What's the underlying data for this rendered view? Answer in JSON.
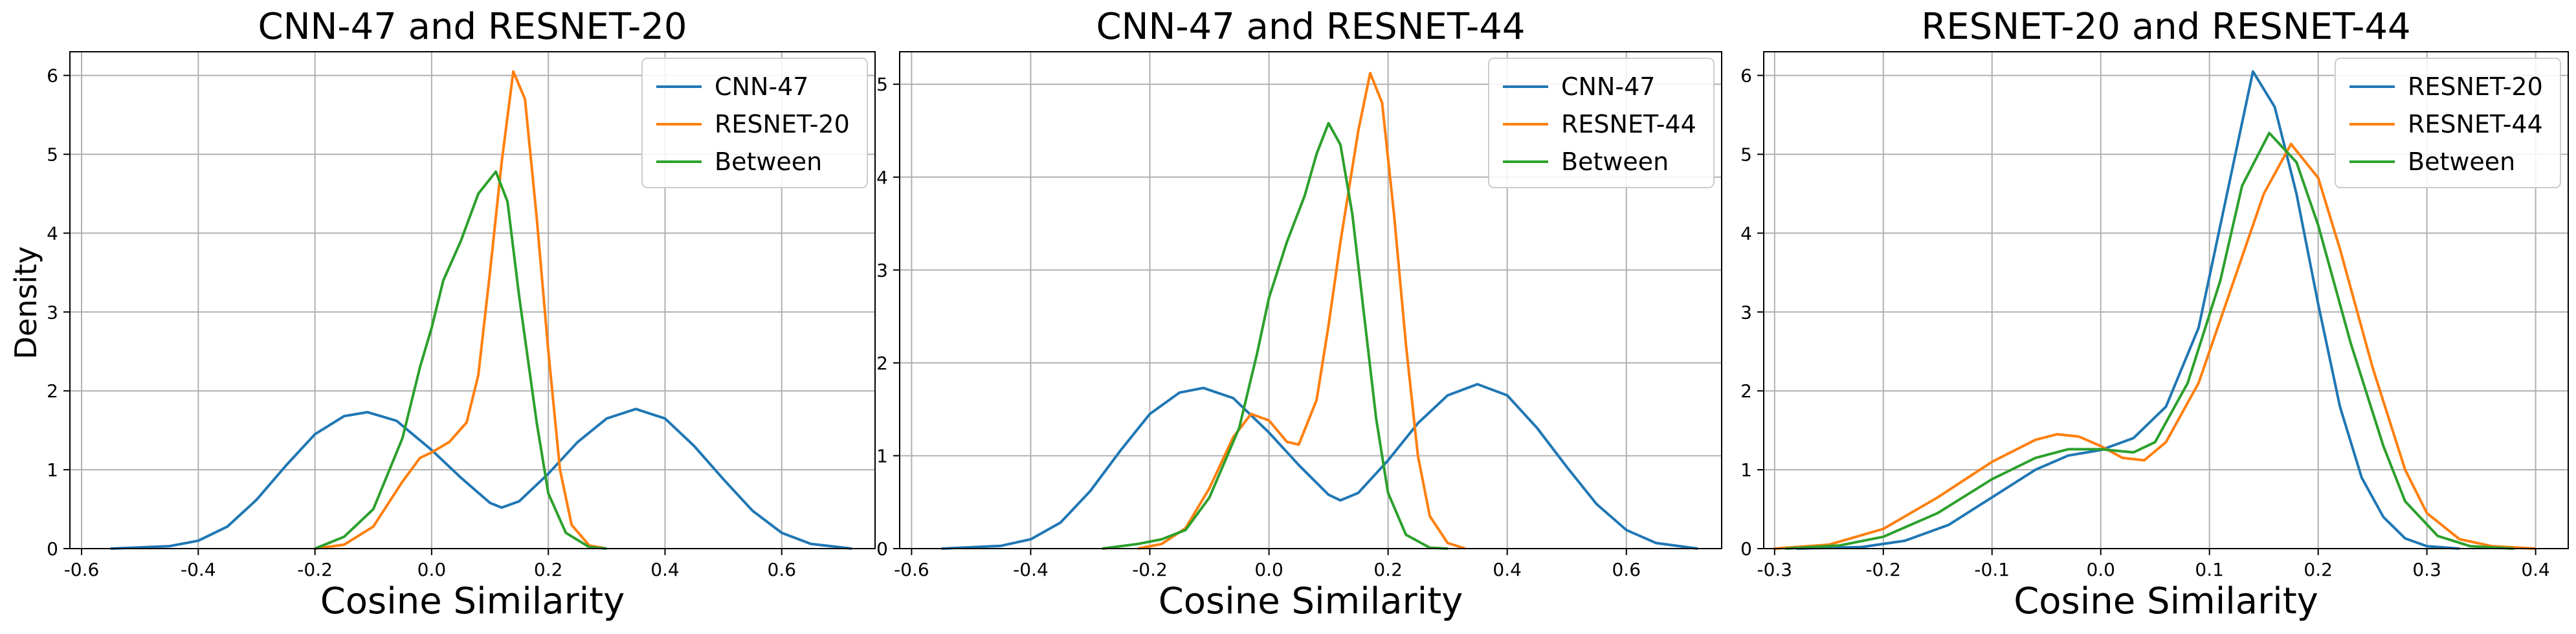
{
  "figure": {
    "ylabel": "Density",
    "xlabel": "Cosine Similarity"
  },
  "chart_data": [
    {
      "type": "line",
      "title": "CNN-47 and RESNET-20",
      "xlabel": "Cosine Similarity",
      "ylabel": "Density",
      "xlim": [
        -0.62,
        0.76
      ],
      "ylim": [
        0,
        6.3
      ],
      "xticks": [
        -0.6,
        -0.4,
        -0.2,
        0.0,
        0.2,
        0.4,
        0.6
      ],
      "xtick_labels": [
        "-0.6",
        "-0.4",
        "-0.2",
        "0.0",
        "0.2",
        "0.4",
        "0.6"
      ],
      "yticks": [
        0,
        1,
        2,
        3,
        4,
        5,
        6
      ],
      "grid": true,
      "legend_position": "top-right",
      "series": [
        {
          "name": "CNN-47",
          "color": "#1f77b4",
          "points": [
            [
              -0.55,
              0
            ],
            [
              -0.45,
              0.03
            ],
            [
              -0.4,
              0.1
            ],
            [
              -0.35,
              0.28
            ],
            [
              -0.3,
              0.62
            ],
            [
              -0.25,
              1.05
            ],
            [
              -0.2,
              1.45
            ],
            [
              -0.15,
              1.68
            ],
            [
              -0.11,
              1.73
            ],
            [
              -0.06,
              1.62
            ],
            [
              0.0,
              1.25
            ],
            [
              0.05,
              0.9
            ],
            [
              0.1,
              0.58
            ],
            [
              0.12,
              0.52
            ],
            [
              0.15,
              0.6
            ],
            [
              0.2,
              0.95
            ],
            [
              0.25,
              1.35
            ],
            [
              0.3,
              1.65
            ],
            [
              0.35,
              1.77
            ],
            [
              0.4,
              1.65
            ],
            [
              0.45,
              1.3
            ],
            [
              0.5,
              0.88
            ],
            [
              0.55,
              0.48
            ],
            [
              0.6,
              0.2
            ],
            [
              0.65,
              0.06
            ],
            [
              0.72,
              0.0
            ]
          ]
        },
        {
          "name": "RESNET-20",
          "color": "#ff7f0e",
          "points": [
            [
              -0.2,
              0
            ],
            [
              -0.15,
              0.05
            ],
            [
              -0.1,
              0.28
            ],
            [
              -0.05,
              0.85
            ],
            [
              -0.02,
              1.15
            ],
            [
              0.0,
              1.22
            ],
            [
              0.03,
              1.35
            ],
            [
              0.06,
              1.6
            ],
            [
              0.08,
              2.2
            ],
            [
              0.1,
              3.5
            ],
            [
              0.12,
              4.9
            ],
            [
              0.14,
              6.05
            ],
            [
              0.16,
              5.7
            ],
            [
              0.18,
              4.2
            ],
            [
              0.2,
              2.5
            ],
            [
              0.22,
              1.0
            ],
            [
              0.24,
              0.3
            ],
            [
              0.27,
              0.04
            ],
            [
              0.3,
              0.0
            ]
          ]
        },
        {
          "name": "Between",
          "color": "#2ca02c",
          "points": [
            [
              -0.2,
              0
            ],
            [
              -0.15,
              0.15
            ],
            [
              -0.1,
              0.5
            ],
            [
              -0.05,
              1.4
            ],
            [
              -0.02,
              2.3
            ],
            [
              0.0,
              2.8
            ],
            [
              0.02,
              3.4
            ],
            [
              0.05,
              3.9
            ],
            [
              0.08,
              4.5
            ],
            [
              0.11,
              4.78
            ],
            [
              0.13,
              4.4
            ],
            [
              0.15,
              3.2
            ],
            [
              0.18,
              1.6
            ],
            [
              0.2,
              0.7
            ],
            [
              0.23,
              0.2
            ],
            [
              0.27,
              0.02
            ],
            [
              0.3,
              0.0
            ]
          ]
        }
      ]
    },
    {
      "type": "line",
      "title": "CNN-47 and RESNET-44",
      "xlabel": "Cosine Similarity",
      "ylabel": "",
      "xlim": [
        -0.62,
        0.76
      ],
      "ylim": [
        0,
        5.35
      ],
      "xticks": [
        -0.6,
        -0.4,
        -0.2,
        0.0,
        0.2,
        0.4,
        0.6
      ],
      "xtick_labels": [
        "-0.6",
        "-0.4",
        "-0.2",
        "0.0",
        "0.2",
        "0.4",
        "0.6"
      ],
      "yticks": [
        0,
        1,
        2,
        3,
        4,
        5
      ],
      "grid": true,
      "legend_position": "top-right",
      "series": [
        {
          "name": "CNN-47",
          "color": "#1f77b4",
          "points": [
            [
              -0.55,
              0
            ],
            [
              -0.45,
              0.03
            ],
            [
              -0.4,
              0.1
            ],
            [
              -0.35,
              0.28
            ],
            [
              -0.3,
              0.62
            ],
            [
              -0.25,
              1.05
            ],
            [
              -0.2,
              1.45
            ],
            [
              -0.15,
              1.68
            ],
            [
              -0.11,
              1.73
            ],
            [
              -0.06,
              1.62
            ],
            [
              0.0,
              1.25
            ],
            [
              0.05,
              0.9
            ],
            [
              0.1,
              0.58
            ],
            [
              0.12,
              0.52
            ],
            [
              0.15,
              0.6
            ],
            [
              0.2,
              0.95
            ],
            [
              0.25,
              1.35
            ],
            [
              0.3,
              1.65
            ],
            [
              0.35,
              1.77
            ],
            [
              0.4,
              1.65
            ],
            [
              0.45,
              1.3
            ],
            [
              0.5,
              0.88
            ],
            [
              0.55,
              0.48
            ],
            [
              0.6,
              0.2
            ],
            [
              0.65,
              0.06
            ],
            [
              0.72,
              0.0
            ]
          ]
        },
        {
          "name": "RESNET-44",
          "color": "#ff7f0e",
          "points": [
            [
              -0.22,
              0
            ],
            [
              -0.18,
              0.05
            ],
            [
              -0.14,
              0.22
            ],
            [
              -0.1,
              0.65
            ],
            [
              -0.06,
              1.2
            ],
            [
              -0.03,
              1.45
            ],
            [
              0.0,
              1.38
            ],
            [
              0.03,
              1.15
            ],
            [
              0.05,
              1.12
            ],
            [
              0.08,
              1.6
            ],
            [
              0.1,
              2.4
            ],
            [
              0.12,
              3.3
            ],
            [
              0.15,
              4.5
            ],
            [
              0.17,
              5.12
            ],
            [
              0.19,
              4.8
            ],
            [
              0.21,
              3.6
            ],
            [
              0.23,
              2.2
            ],
            [
              0.25,
              1.0
            ],
            [
              0.27,
              0.35
            ],
            [
              0.3,
              0.06
            ],
            [
              0.33,
              0.0
            ]
          ]
        },
        {
          "name": "Between",
          "color": "#2ca02c",
          "points": [
            [
              -0.28,
              0
            ],
            [
              -0.22,
              0.05
            ],
            [
              -0.18,
              0.1
            ],
            [
              -0.14,
              0.2
            ],
            [
              -0.1,
              0.55
            ],
            [
              -0.05,
              1.3
            ],
            [
              -0.02,
              2.1
            ],
            [
              0.0,
              2.7
            ],
            [
              0.03,
              3.3
            ],
            [
              0.06,
              3.8
            ],
            [
              0.08,
              4.25
            ],
            [
              0.1,
              4.58
            ],
            [
              0.12,
              4.35
            ],
            [
              0.14,
              3.6
            ],
            [
              0.16,
              2.5
            ],
            [
              0.18,
              1.4
            ],
            [
              0.2,
              0.6
            ],
            [
              0.23,
              0.15
            ],
            [
              0.27,
              0.01
            ],
            [
              0.3,
              0.0
            ]
          ]
        }
      ]
    },
    {
      "type": "line",
      "title": "RESNET-20 and RESNET-44",
      "xlabel": "Cosine Similarity",
      "ylabel": "",
      "xlim": [
        -0.31,
        0.43
      ],
      "ylim": [
        0,
        6.3
      ],
      "xticks": [
        -0.3,
        -0.2,
        -0.1,
        0.0,
        0.1,
        0.2,
        0.3,
        0.4
      ],
      "xtick_labels": [
        "-0.3",
        "-0.2",
        "-0.1",
        "0.0",
        "0.1",
        "0.2",
        "0.3",
        "0.4"
      ],
      "yticks": [
        0,
        1,
        2,
        3,
        4,
        5,
        6
      ],
      "grid": true,
      "legend_position": "top-right",
      "series": [
        {
          "name": "RESNET-20",
          "color": "#1f77b4",
          "points": [
            [
              -0.28,
              0
            ],
            [
              -0.22,
              0.02
            ],
            [
              -0.18,
              0.1
            ],
            [
              -0.14,
              0.3
            ],
            [
              -0.1,
              0.65
            ],
            [
              -0.06,
              1.0
            ],
            [
              -0.03,
              1.18
            ],
            [
              0.0,
              1.25
            ],
            [
              0.03,
              1.4
            ],
            [
              0.06,
              1.8
            ],
            [
              0.09,
              2.8
            ],
            [
              0.11,
              4.1
            ],
            [
              0.13,
              5.4
            ],
            [
              0.14,
              6.05
            ],
            [
              0.16,
              5.6
            ],
            [
              0.18,
              4.5
            ],
            [
              0.2,
              3.1
            ],
            [
              0.22,
              1.8
            ],
            [
              0.24,
              0.9
            ],
            [
              0.26,
              0.4
            ],
            [
              0.28,
              0.13
            ],
            [
              0.3,
              0.03
            ],
            [
              0.33,
              0.0
            ]
          ]
        },
        {
          "name": "RESNET-44",
          "color": "#ff7f0e",
          "points": [
            [
              -0.3,
              0
            ],
            [
              -0.25,
              0.05
            ],
            [
              -0.2,
              0.25
            ],
            [
              -0.15,
              0.65
            ],
            [
              -0.1,
              1.1
            ],
            [
              -0.06,
              1.38
            ],
            [
              -0.04,
              1.45
            ],
            [
              -0.02,
              1.42
            ],
            [
              0.0,
              1.3
            ],
            [
              0.02,
              1.15
            ],
            [
              0.04,
              1.12
            ],
            [
              0.06,
              1.35
            ],
            [
              0.09,
              2.1
            ],
            [
              0.12,
              3.3
            ],
            [
              0.15,
              4.5
            ],
            [
              0.175,
              5.13
            ],
            [
              0.2,
              4.7
            ],
            [
              0.22,
              3.8
            ],
            [
              0.25,
              2.3
            ],
            [
              0.28,
              1.0
            ],
            [
              0.3,
              0.45
            ],
            [
              0.33,
              0.12
            ],
            [
              0.36,
              0.03
            ],
            [
              0.4,
              0.0
            ]
          ]
        },
        {
          "name": "Between",
          "color": "#2ca02c",
          "points": [
            [
              -0.29,
              0
            ],
            [
              -0.24,
              0.04
            ],
            [
              -0.2,
              0.15
            ],
            [
              -0.15,
              0.45
            ],
            [
              -0.1,
              0.88
            ],
            [
              -0.06,
              1.15
            ],
            [
              -0.03,
              1.26
            ],
            [
              0.0,
              1.26
            ],
            [
              0.03,
              1.22
            ],
            [
              0.05,
              1.35
            ],
            [
              0.08,
              2.1
            ],
            [
              0.11,
              3.4
            ],
            [
              0.13,
              4.6
            ],
            [
              0.155,
              5.27
            ],
            [
              0.18,
              4.9
            ],
            [
              0.2,
              4.1
            ],
            [
              0.23,
              2.6
            ],
            [
              0.26,
              1.3
            ],
            [
              0.28,
              0.6
            ],
            [
              0.31,
              0.16
            ],
            [
              0.34,
              0.03
            ],
            [
              0.38,
              0.0
            ]
          ]
        }
      ]
    }
  ]
}
